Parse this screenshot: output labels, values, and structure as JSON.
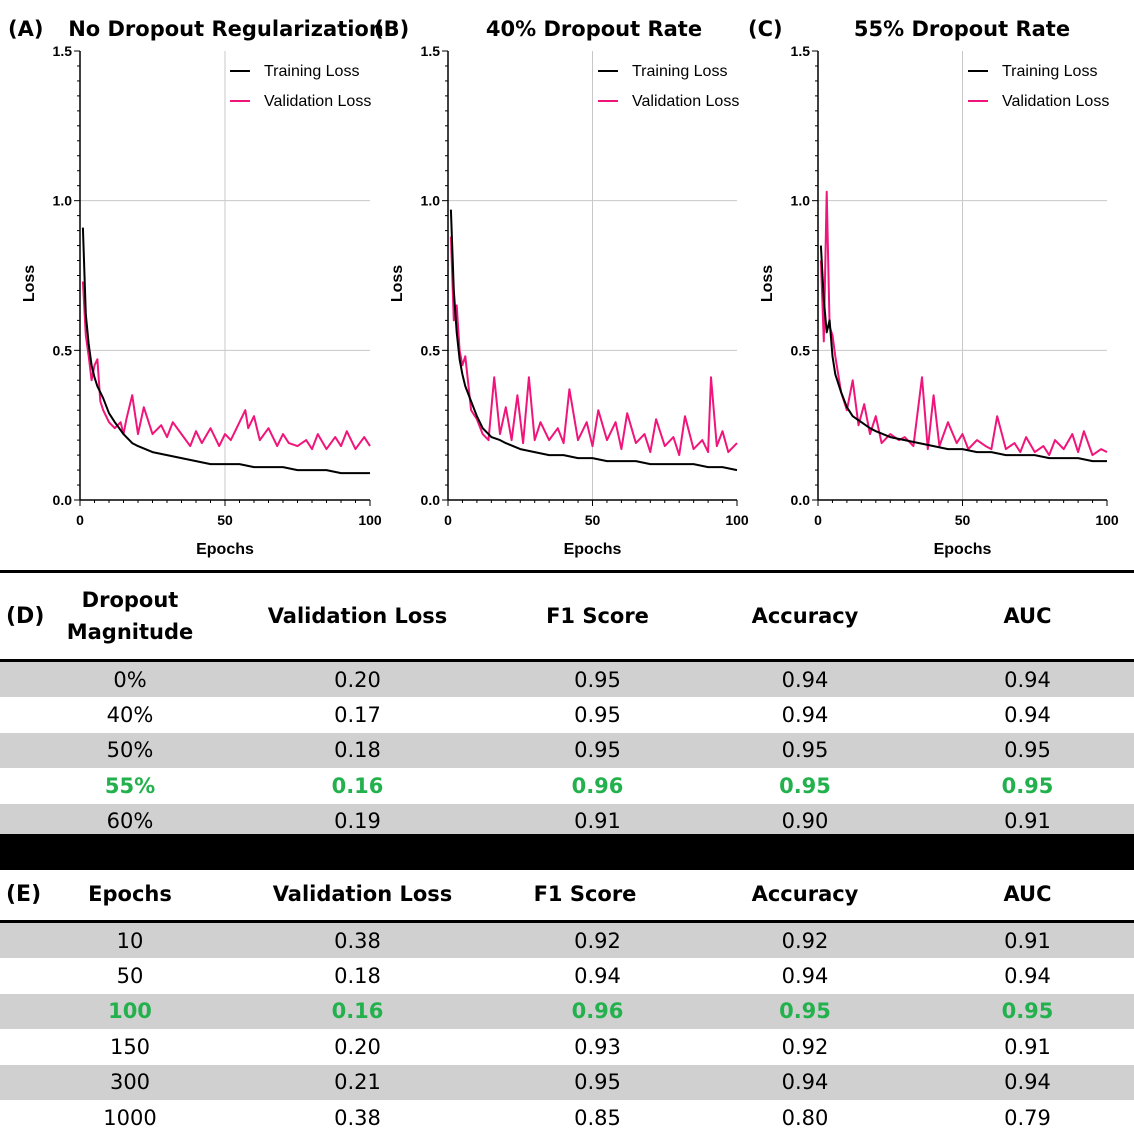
{
  "chart_data": [
    {
      "type": "line",
      "panel_label": "(A)",
      "title": "No Dropout Regularization",
      "xlabel": "Epochs",
      "ylabel": "Loss",
      "xlim": [
        0,
        100
      ],
      "ylim": [
        0,
        1.5
      ],
      "xticks": [
        "0",
        "50",
        "100"
      ],
      "yticks": [
        "0.0",
        "0.5",
        "1.0",
        "1.5"
      ],
      "grid": true,
      "legend": "top-right",
      "series": [
        {
          "name": "Training Loss",
          "color": "#000000",
          "x": [
            1,
            2,
            3,
            4,
            5,
            6,
            8,
            10,
            12,
            15,
            18,
            20,
            25,
            30,
            35,
            40,
            45,
            50,
            55,
            60,
            65,
            70,
            75,
            80,
            85,
            90,
            95,
            100
          ],
          "y": [
            0.91,
            0.62,
            0.52,
            0.45,
            0.41,
            0.38,
            0.34,
            0.29,
            0.26,
            0.22,
            0.19,
            0.18,
            0.16,
            0.15,
            0.14,
            0.13,
            0.12,
            0.12,
            0.12,
            0.11,
            0.11,
            0.11,
            0.1,
            0.1,
            0.1,
            0.09,
            0.09,
            0.09
          ]
        },
        {
          "name": "Validation Loss",
          "color": "#f0157a",
          "x": [
            1,
            2,
            3,
            4,
            5,
            6,
            7,
            8,
            10,
            12,
            14,
            15,
            16,
            18,
            20,
            22,
            25,
            28,
            30,
            32,
            35,
            38,
            40,
            42,
            45,
            48,
            50,
            52,
            55,
            57,
            58,
            60,
            62,
            65,
            68,
            70,
            72,
            75,
            78,
            80,
            82,
            85,
            88,
            90,
            92,
            95,
            98,
            100
          ],
          "y": [
            0.73,
            0.55,
            0.48,
            0.4,
            0.45,
            0.47,
            0.33,
            0.3,
            0.26,
            0.24,
            0.26,
            0.22,
            0.27,
            0.35,
            0.22,
            0.31,
            0.22,
            0.25,
            0.21,
            0.26,
            0.22,
            0.18,
            0.23,
            0.19,
            0.24,
            0.18,
            0.22,
            0.2,
            0.26,
            0.3,
            0.24,
            0.28,
            0.2,
            0.24,
            0.18,
            0.22,
            0.19,
            0.18,
            0.2,
            0.17,
            0.22,
            0.17,
            0.21,
            0.18,
            0.23,
            0.17,
            0.21,
            0.18
          ]
        }
      ]
    },
    {
      "type": "line",
      "panel_label": "(B)",
      "title": "40% Dropout Rate",
      "xlabel": "Epochs",
      "ylabel": "Loss",
      "xlim": [
        0,
        100
      ],
      "ylim": [
        0,
        1.5
      ],
      "xticks": [
        "0",
        "50",
        "100"
      ],
      "yticks": [
        "0.0",
        "0.5",
        "1.0",
        "1.5"
      ],
      "grid": true,
      "legend": "top-right",
      "series": [
        {
          "name": "Training Loss",
          "color": "#000000",
          "x": [
            1,
            2,
            3,
            4,
            5,
            6,
            8,
            10,
            12,
            15,
            18,
            20,
            25,
            30,
            35,
            40,
            45,
            50,
            55,
            60,
            65,
            70,
            75,
            80,
            85,
            90,
            95,
            100
          ],
          "y": [
            0.97,
            0.7,
            0.56,
            0.47,
            0.42,
            0.38,
            0.33,
            0.28,
            0.24,
            0.21,
            0.2,
            0.19,
            0.17,
            0.16,
            0.15,
            0.15,
            0.14,
            0.14,
            0.13,
            0.13,
            0.13,
            0.12,
            0.12,
            0.12,
            0.12,
            0.11,
            0.11,
            0.1
          ]
        },
        {
          "name": "Validation Loss",
          "color": "#f0157a",
          "x": [
            1,
            2,
            3,
            4,
            5,
            6,
            8,
            10,
            12,
            14,
            16,
            18,
            20,
            22,
            24,
            26,
            28,
            30,
            32,
            35,
            38,
            40,
            42,
            45,
            48,
            50,
            52,
            55,
            58,
            60,
            62,
            65,
            68,
            70,
            72,
            75,
            78,
            80,
            82,
            85,
            88,
            90,
            91,
            93,
            95,
            97,
            100
          ],
          "y": [
            0.88,
            0.6,
            0.65,
            0.5,
            0.45,
            0.48,
            0.3,
            0.27,
            0.22,
            0.2,
            0.41,
            0.22,
            0.31,
            0.2,
            0.35,
            0.19,
            0.41,
            0.2,
            0.26,
            0.2,
            0.24,
            0.19,
            0.37,
            0.2,
            0.26,
            0.18,
            0.3,
            0.2,
            0.26,
            0.17,
            0.29,
            0.19,
            0.22,
            0.16,
            0.27,
            0.18,
            0.21,
            0.15,
            0.28,
            0.17,
            0.2,
            0.16,
            0.41,
            0.18,
            0.23,
            0.16,
            0.19
          ]
        }
      ]
    },
    {
      "type": "line",
      "panel_label": "(C)",
      "title": "55% Dropout Rate",
      "xlabel": "Epochs",
      "ylabel": "Loss",
      "xlim": [
        0,
        100
      ],
      "ylim": [
        0,
        1.5
      ],
      "xticks": [
        "0",
        "50",
        "100"
      ],
      "yticks": [
        "0.0",
        "0.5",
        "1.0",
        "1.5"
      ],
      "grid": true,
      "legend": "top-right",
      "series": [
        {
          "name": "Training Loss",
          "color": "#000000",
          "x": [
            1,
            2,
            3,
            4,
            5,
            6,
            8,
            10,
            12,
            15,
            18,
            20,
            25,
            30,
            35,
            40,
            45,
            50,
            55,
            60,
            65,
            70,
            75,
            80,
            85,
            90,
            95,
            100
          ],
          "y": [
            0.85,
            0.67,
            0.56,
            0.6,
            0.48,
            0.42,
            0.36,
            0.31,
            0.28,
            0.26,
            0.24,
            0.23,
            0.21,
            0.2,
            0.19,
            0.18,
            0.17,
            0.17,
            0.16,
            0.16,
            0.15,
            0.15,
            0.15,
            0.14,
            0.14,
            0.14,
            0.13,
            0.13
          ]
        },
        {
          "name": "Validation Loss",
          "color": "#f0157a",
          "x": [
            1,
            2,
            3,
            4,
            5,
            6,
            8,
            10,
            12,
            14,
            16,
            18,
            20,
            22,
            25,
            28,
            30,
            33,
            36,
            38,
            40,
            42,
            45,
            48,
            50,
            52,
            55,
            58,
            60,
            62,
            65,
            68,
            70,
            72,
            75,
            78,
            80,
            82,
            85,
            88,
            90,
            92,
            95,
            98,
            100
          ],
          "y": [
            0.8,
            0.53,
            1.03,
            0.58,
            0.55,
            0.48,
            0.36,
            0.3,
            0.4,
            0.25,
            0.32,
            0.22,
            0.28,
            0.19,
            0.22,
            0.2,
            0.21,
            0.18,
            0.41,
            0.17,
            0.35,
            0.18,
            0.26,
            0.19,
            0.22,
            0.17,
            0.2,
            0.18,
            0.17,
            0.28,
            0.17,
            0.19,
            0.16,
            0.21,
            0.16,
            0.18,
            0.15,
            0.2,
            0.17,
            0.22,
            0.16,
            0.23,
            0.15,
            0.17,
            0.16
          ]
        }
      ]
    },
    {
      "type": "table",
      "panel_label": "(D)",
      "columns": [
        "Dropout Magnitude",
        "Validation Loss",
        "F1 Score",
        "Accuracy",
        "AUC"
      ],
      "rows": [
        [
          "0%",
          "0.20",
          "0.95",
          "0.94",
          "0.94"
        ],
        [
          "40%",
          "0.17",
          "0.95",
          "0.94",
          "0.94"
        ],
        [
          "50%",
          "0.18",
          "0.95",
          "0.95",
          "0.95"
        ],
        [
          "55%",
          "0.16",
          "0.96",
          "0.95",
          "0.95"
        ],
        [
          "60%",
          "0.19",
          "0.91",
          "0.90",
          "0.91"
        ]
      ],
      "highlight_row": 3,
      "highlight_color": "#22b14c"
    },
    {
      "type": "table",
      "panel_label": "(E)",
      "columns": [
        "Epochs",
        "Validation Loss",
        "F1 Score",
        "Accuracy",
        "AUC"
      ],
      "rows": [
        [
          "10",
          "0.38",
          "0.92",
          "0.92",
          "0.91"
        ],
        [
          "50",
          "0.18",
          "0.94",
          "0.94",
          "0.94"
        ],
        [
          "100",
          "0.16",
          "0.96",
          "0.95",
          "0.95"
        ],
        [
          "150",
          "0.20",
          "0.93",
          "0.92",
          "0.91"
        ],
        [
          "300",
          "0.21",
          "0.95",
          "0.94",
          "0.94"
        ],
        [
          "1000",
          "0.38",
          "0.85",
          "0.80",
          "0.79"
        ]
      ],
      "highlight_row": 2,
      "highlight_color": "#22b14c"
    }
  ]
}
